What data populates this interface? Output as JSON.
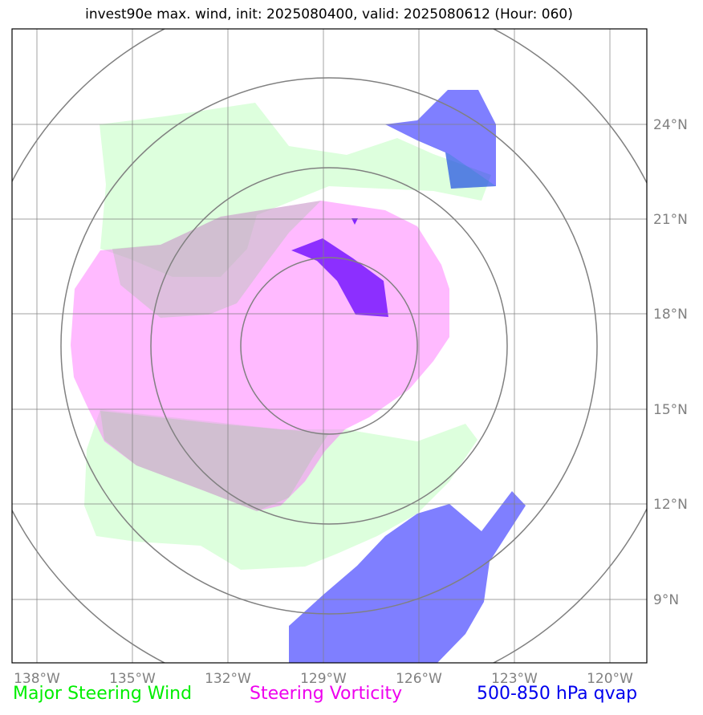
{
  "title": "invest90e max. wind, init: 2025080400, valid: 2025080612 (Hour: 060)",
  "axes": {
    "lon_labels": [
      "138°W",
      "135°W",
      "132°W",
      "129°W",
      "126°W",
      "123°W",
      "120°W"
    ],
    "lat_labels": [
      "24°N",
      "21°N",
      "18°N",
      "15°N",
      "12°N",
      "9°N"
    ]
  },
  "legend": {
    "wind": "Major Steering Wind",
    "vorticity": "Steering Vorticity",
    "qvap": "500-850 hPa qvap"
  },
  "colors": {
    "wind": "#ccffcc",
    "vorticity": "#ff99ff",
    "qvap": "#0000ff",
    "grid": "#808080"
  },
  "icons": [
    "range-rings",
    "lat-lon-grid"
  ]
}
